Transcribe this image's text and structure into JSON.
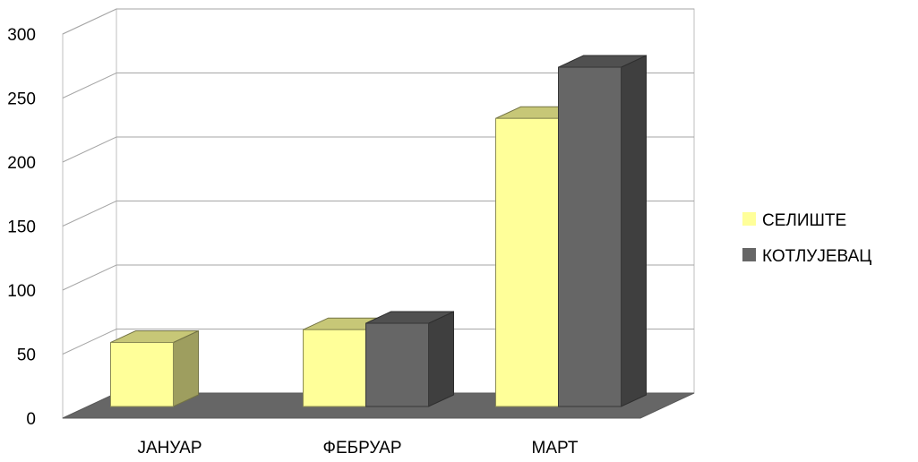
{
  "chart_data": {
    "type": "bar",
    "categories": [
      "ЈАНУАР",
      "ФЕБРУАР",
      "МАРТ"
    ],
    "series": [
      {
        "name": "СЕЛИШТЕ",
        "values": [
          50,
          60,
          225
        ],
        "color": "#ffff99"
      },
      {
        "name": "КОТЛУЈЕВАЦ",
        "values": [
          0,
          65,
          265
        ],
        "color": "#666666"
      }
    ],
    "ylim": [
      0,
      300
    ],
    "yticks": [
      0,
      50,
      100,
      150,
      200,
      250,
      300
    ],
    "grid": true,
    "legend_position": "right",
    "style": "3d-clustered-column",
    "floor_color": "#666666",
    "xlabel": "",
    "ylabel": "",
    "title": ""
  }
}
